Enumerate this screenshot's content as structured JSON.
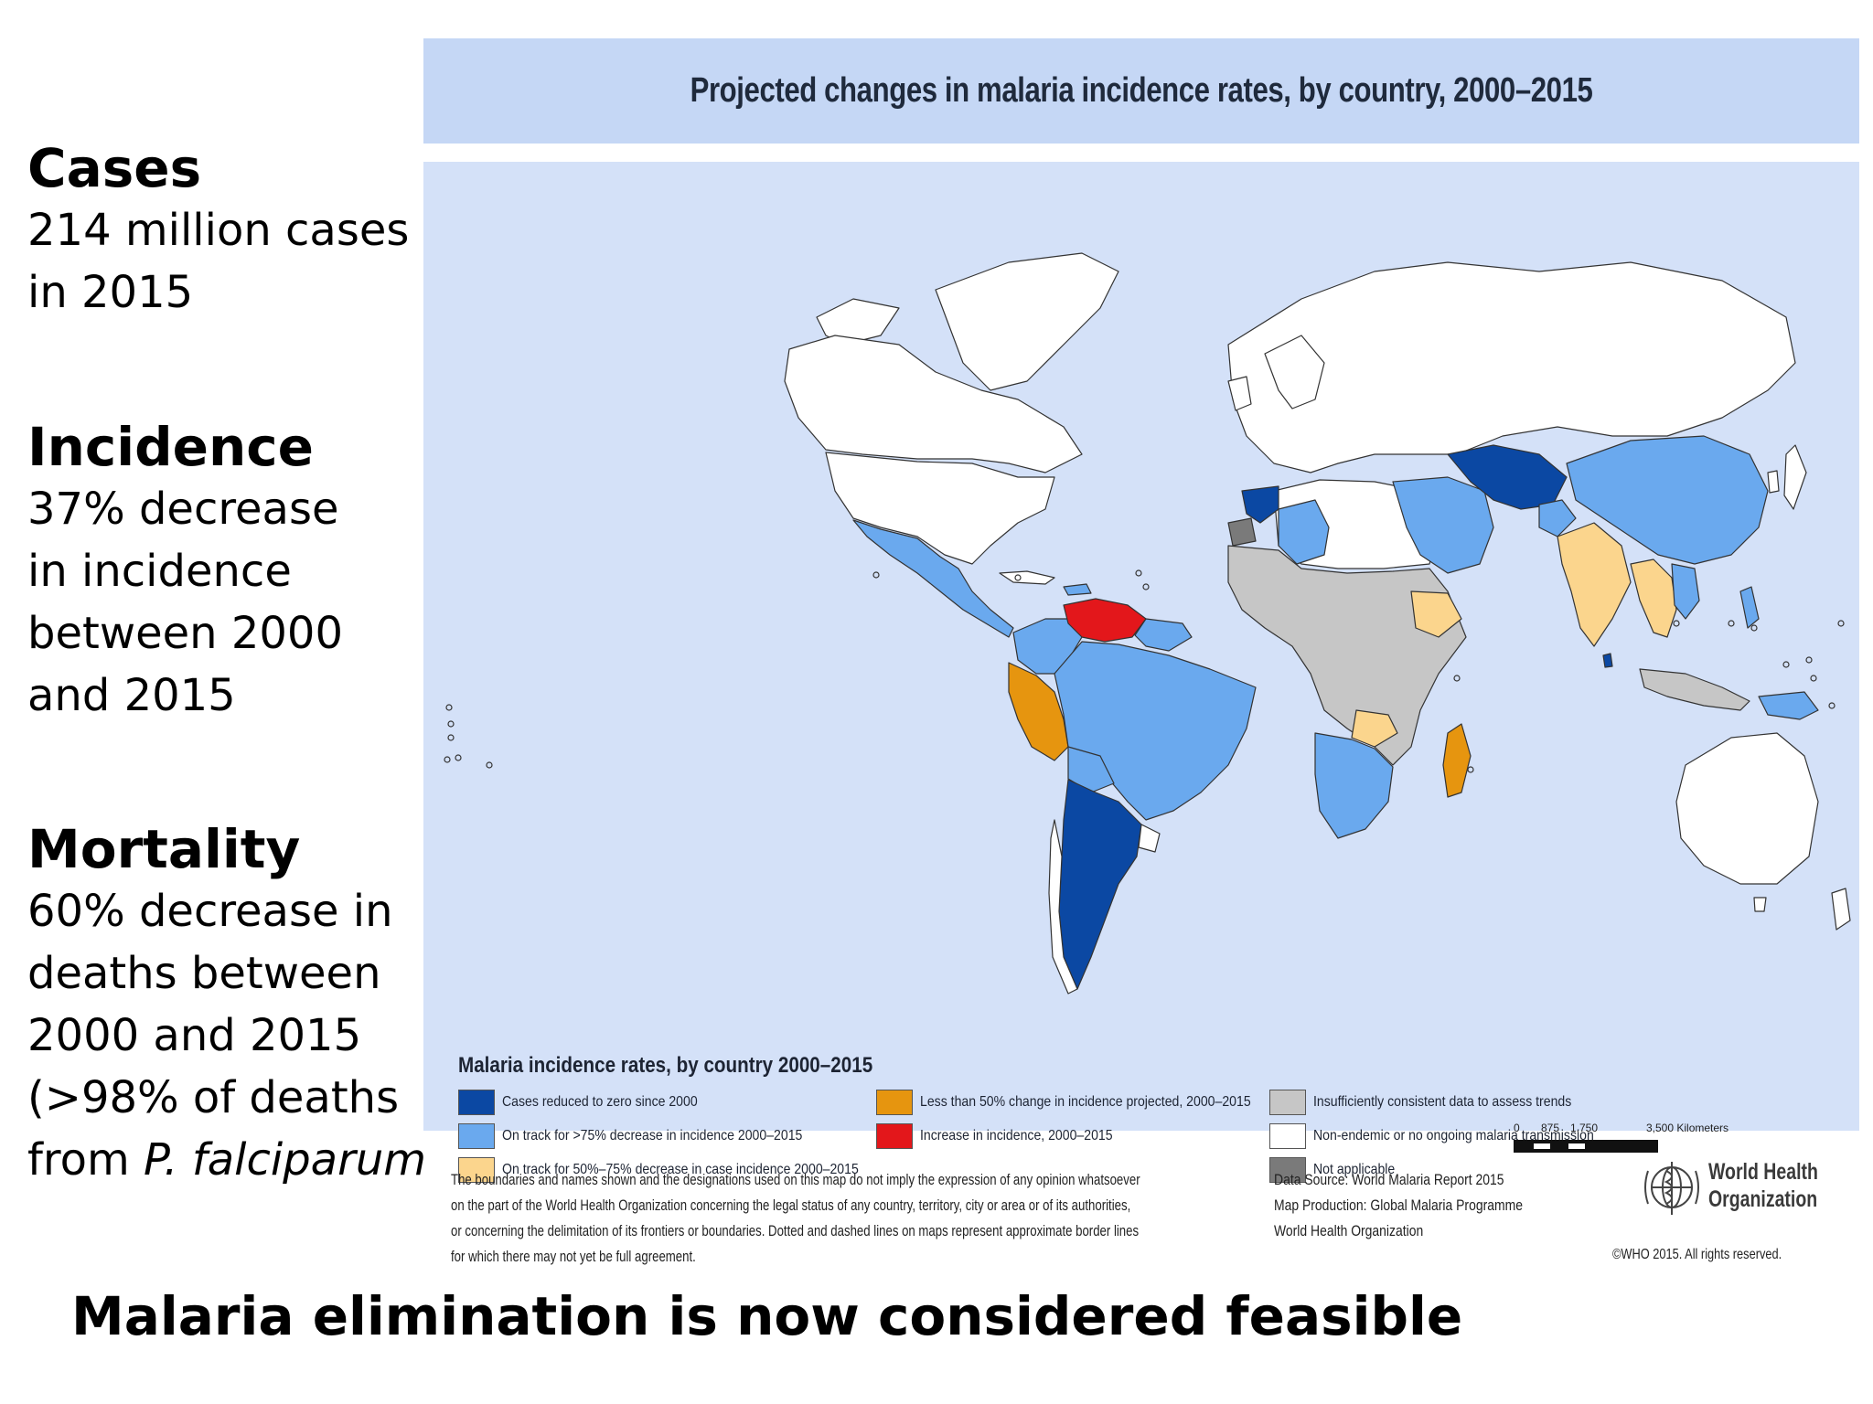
{
  "stats": {
    "cases": {
      "heading": "Cases",
      "lines": [
        "214 million cases",
        "in 2015"
      ]
    },
    "incidence": {
      "heading": "Incidence",
      "lines": [
        "37% decrease",
        "in incidence",
        "between 2000",
        "and 2015"
      ]
    },
    "mortality": {
      "heading": "Mortality",
      "lines": [
        "60% decrease in",
        "deaths between",
        "2000 and 2015",
        "(>98% of deaths"
      ],
      "last_line_prefix": "from ",
      "last_line_italic": "P. falciparum",
      "last_line_suffix": ")"
    }
  },
  "map": {
    "title": "Projected changes in malaria incidence rates, by country, 2000–2015",
    "legend_title": "Malaria incidence rates, by country 2000–2015",
    "legend": [
      {
        "label": "Cases reduced to zero since 2000",
        "color": "#0b48a3"
      },
      {
        "label": "On track for >75% decrease in incidence 2000–2015",
        "color": "#6aa9ee"
      },
      {
        "label": "On track for 50%–75% decrease in case incidence 2000–2015",
        "color": "#fbd58d"
      },
      {
        "label": "Less than 50% change in incidence projected, 2000–2015",
        "color": "#e6950f"
      },
      {
        "label": "Increase in incidence, 2000–2015",
        "color": "#e3171b"
      },
      {
        "label": "Insufficiently consistent data to assess trends",
        "color": "#c6c6c6"
      },
      {
        "label": "Non-endemic or no ongoing malaria transmission",
        "color": "#ffffff"
      },
      {
        "label": "Not applicable",
        "color": "#7a7a7a"
      }
    ],
    "scale": {
      "labels": [
        "0",
        "875",
        "1,750",
        "3,500 Kilometers"
      ]
    },
    "colors": {
      "ocean": "#d4e1f8",
      "title_band": "#c5d7f5",
      "border": "#333333"
    },
    "disclaimer_lines": [
      "The boundaries and names shown and the designations used on this map do not imply the expression of any opinion whatsoever",
      "on the part of the World Health Organization concerning the legal status of any country, territory, city or area or of its authorities,",
      "or concerning the delimitation of its frontiers or boundaries. Dotted and dashed lines on maps represent approximate border lines",
      "for which there may not yet be full agreement."
    ],
    "source_lines": [
      "Data Source: World Malaria Report 2015",
      "Map Production: Global Malaria Programme",
      "World Health Organization"
    ],
    "who_name_lines": [
      "World Health",
      "Organization"
    ],
    "copyright": "©WHO 2015. All rights reserved.",
    "who_logo_icon": "who-emblem-icon"
  },
  "conclusion": "Malaria elimination is now considered feasible"
}
